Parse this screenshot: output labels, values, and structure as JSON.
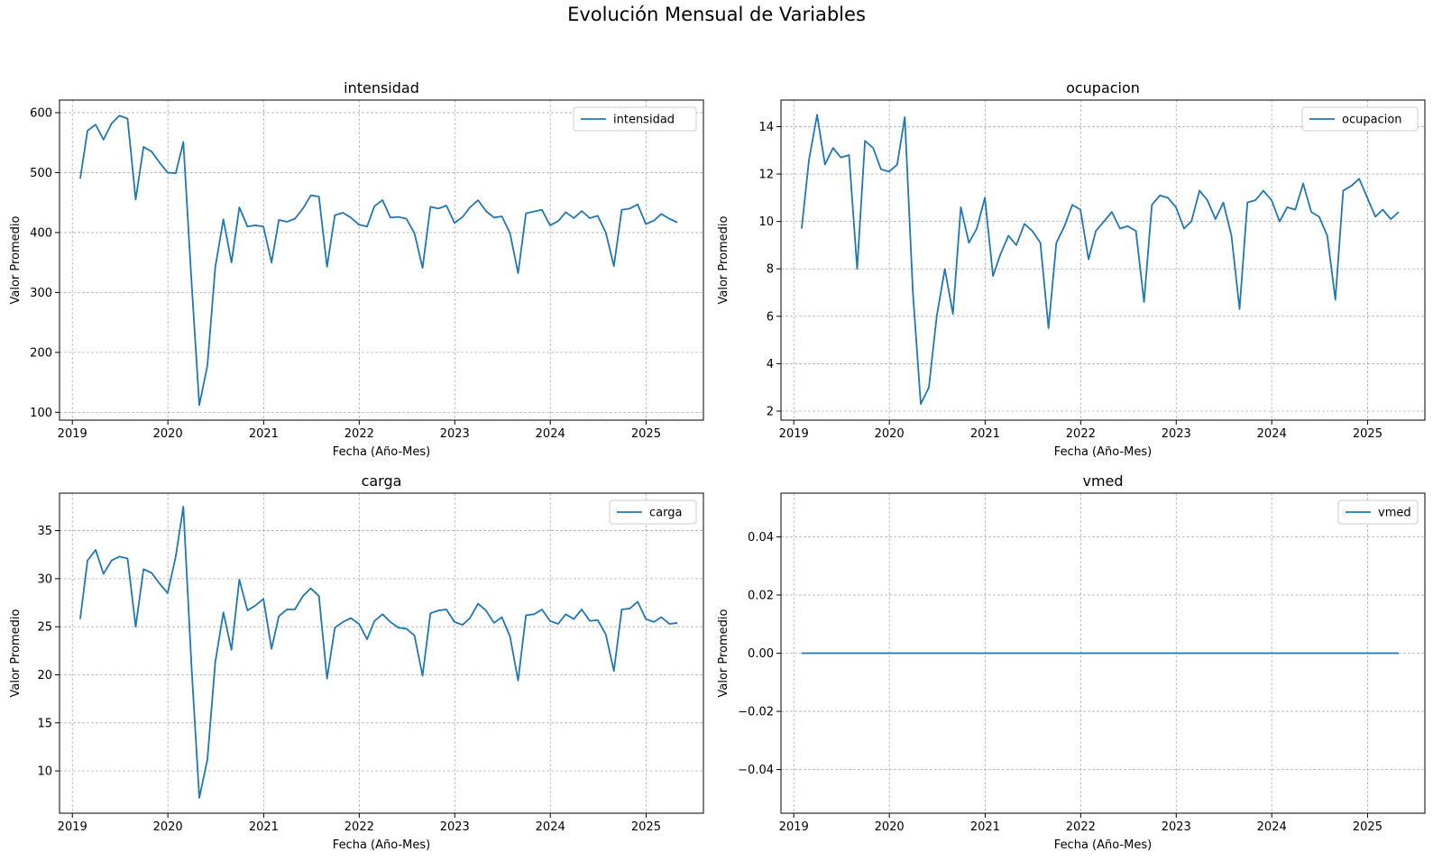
{
  "figure": {
    "suptitle": "Evolución Mensual de Variables"
  },
  "chart_data": [
    {
      "type": "line",
      "title": "intensidad",
      "xlabel": "Fecha (Año-Mes)",
      "ylabel": "Valor Promedio",
      "xticks": [
        "2019",
        "2020",
        "2021",
        "2022",
        "2023",
        "2024",
        "2025"
      ],
      "yticks": [
        "100",
        "200",
        "300",
        "400",
        "500",
        "600"
      ],
      "xlim": [
        "2018-11-13",
        "2025-08-08"
      ],
      "ylim": [
        87,
        621
      ],
      "grid": true,
      "legend": "top-right",
      "x": [
        "2019-01-31",
        "2019-02-28",
        "2019-03-31",
        "2019-04-30",
        "2019-05-31",
        "2019-06-30",
        "2019-07-31",
        "2019-08-31",
        "2019-09-30",
        "2019-10-31",
        "2019-11-30",
        "2019-12-31",
        "2020-01-31",
        "2020-02-29",
        "2020-03-31",
        "2020-04-30",
        "2020-05-31",
        "2020-06-30",
        "2020-07-31",
        "2020-08-31",
        "2020-09-30",
        "2020-10-31",
        "2020-11-30",
        "2020-12-31",
        "2021-01-31",
        "2021-02-28",
        "2021-03-31",
        "2021-04-30",
        "2021-05-31",
        "2021-06-30",
        "2021-07-31",
        "2021-08-31",
        "2021-09-30",
        "2021-10-31",
        "2021-11-30",
        "2021-12-31",
        "2022-01-31",
        "2022-02-28",
        "2022-03-31",
        "2022-04-30",
        "2022-05-31",
        "2022-06-30",
        "2022-07-31",
        "2022-08-31",
        "2022-09-30",
        "2022-10-31",
        "2022-11-30",
        "2022-12-31",
        "2023-01-31",
        "2023-02-28",
        "2023-03-31",
        "2023-04-30",
        "2023-05-31",
        "2023-06-30",
        "2023-07-31",
        "2023-08-31",
        "2023-09-30",
        "2023-10-31",
        "2023-11-30",
        "2023-12-31",
        "2024-01-31",
        "2024-02-29",
        "2024-03-31",
        "2024-04-30",
        "2024-05-31",
        "2024-06-30",
        "2024-07-31",
        "2024-08-31",
        "2024-09-30",
        "2024-10-31",
        "2024-11-30",
        "2024-12-31",
        "2025-01-31",
        "2025-02-28",
        "2025-03-31",
        "2025-04-30"
      ],
      "series": [
        {
          "name": "intensidad",
          "color": "#1f77b4",
          "values": [
            490,
            570,
            580,
            555,
            582,
            595,
            590,
            455,
            543,
            535,
            517,
            500,
            499,
            551,
            320,
            112,
            178,
            342,
            422,
            350,
            442,
            410,
            412,
            410,
            350,
            421,
            418,
            423,
            440,
            462,
            460,
            343,
            429,
            433,
            425,
            413,
            410,
            444,
            454,
            425,
            426,
            423,
            399,
            341,
            443,
            440,
            445,
            416,
            426,
            442,
            454,
            436,
            425,
            427,
            399,
            332,
            432,
            435,
            438,
            412,
            419,
            434,
            424,
            436,
            424,
            428,
            400,
            344,
            438,
            440,
            447,
            414,
            420,
            431,
            423,
            417
          ]
        }
      ]
    },
    {
      "type": "line",
      "title": "ocupacion",
      "xlabel": "Fecha (Año-Mes)",
      "ylabel": "Valor Promedio",
      "xticks": [
        "2019",
        "2020",
        "2021",
        "2022",
        "2023",
        "2024",
        "2025"
      ],
      "yticks": [
        "2",
        "4",
        "6",
        "8",
        "10",
        "12",
        "14"
      ],
      "xlim": [
        "2018-11-13",
        "2025-08-08"
      ],
      "ylim": [
        1.62,
        15.12
      ],
      "grid": true,
      "legend": "top-right",
      "x": [
        "2019-01-31",
        "2019-02-28",
        "2019-03-31",
        "2019-04-30",
        "2019-05-31",
        "2019-06-30",
        "2019-07-31",
        "2019-08-31",
        "2019-09-30",
        "2019-10-31",
        "2019-11-30",
        "2019-12-31",
        "2020-01-31",
        "2020-02-29",
        "2020-03-31",
        "2020-04-30",
        "2020-05-31",
        "2020-06-30",
        "2020-07-31",
        "2020-08-31",
        "2020-09-30",
        "2020-10-31",
        "2020-11-30",
        "2020-12-31",
        "2021-01-31",
        "2021-02-28",
        "2021-03-31",
        "2021-04-30",
        "2021-05-31",
        "2021-06-30",
        "2021-07-31",
        "2021-08-31",
        "2021-09-30",
        "2021-10-31",
        "2021-11-30",
        "2021-12-31",
        "2022-01-31",
        "2022-02-28",
        "2022-03-31",
        "2022-04-30",
        "2022-05-31",
        "2022-06-30",
        "2022-07-31",
        "2022-08-31",
        "2022-09-30",
        "2022-10-31",
        "2022-11-30",
        "2022-12-31",
        "2023-01-31",
        "2023-02-28",
        "2023-03-31",
        "2023-04-30",
        "2023-05-31",
        "2023-06-30",
        "2023-07-31",
        "2023-08-31",
        "2023-09-30",
        "2023-10-31",
        "2023-11-30",
        "2023-12-31",
        "2024-01-31",
        "2024-02-29",
        "2024-03-31",
        "2024-04-30",
        "2024-05-31",
        "2024-06-30",
        "2024-07-31",
        "2024-08-31",
        "2024-09-30",
        "2024-10-31",
        "2024-11-30",
        "2024-12-31",
        "2025-01-31",
        "2025-02-28",
        "2025-03-31",
        "2025-04-30"
      ],
      "series": [
        {
          "name": "ocupacion",
          "color": "#1f77b4",
          "values": [
            9.7,
            12.6,
            14.5,
            12.4,
            13.1,
            12.7,
            12.8,
            8.0,
            13.4,
            13.1,
            12.2,
            12.1,
            12.4,
            14.4,
            7.0,
            2.3,
            3.0,
            6.0,
            8.0,
            6.1,
            10.6,
            9.1,
            9.7,
            11.0,
            7.7,
            8.6,
            9.4,
            9.0,
            9.9,
            9.6,
            9.1,
            5.5,
            9.1,
            9.8,
            10.7,
            10.5,
            8.4,
            9.6,
            10.0,
            10.4,
            9.7,
            9.8,
            9.6,
            6.6,
            10.7,
            11.1,
            11.0,
            10.6,
            9.7,
            10.0,
            11.3,
            10.9,
            10.1,
            10.8,
            9.4,
            6.3,
            10.8,
            10.9,
            11.3,
            10.9,
            10.0,
            10.6,
            10.5,
            11.6,
            10.4,
            10.2,
            9.4,
            6.7,
            11.3,
            11.5,
            11.8,
            11.0,
            10.2,
            10.5,
            10.1,
            10.4
          ]
        }
      ]
    },
    {
      "type": "line",
      "title": "carga",
      "xlabel": "Fecha (Año-Mes)",
      "ylabel": "Valor Promedio",
      "xticks": [
        "2019",
        "2020",
        "2021",
        "2022",
        "2023",
        "2024",
        "2025"
      ],
      "yticks": [
        "10",
        "15",
        "20",
        "25",
        "30",
        "35"
      ],
      "xlim": [
        "2018-11-13",
        "2025-08-08"
      ],
      "ylim": [
        5.6,
        38.9
      ],
      "grid": true,
      "legend": "top-right",
      "x": [
        "2019-01-31",
        "2019-02-28",
        "2019-03-31",
        "2019-04-30",
        "2019-05-31",
        "2019-06-30",
        "2019-07-31",
        "2019-08-31",
        "2019-09-30",
        "2019-10-31",
        "2019-11-30",
        "2019-12-31",
        "2020-01-31",
        "2020-02-29",
        "2020-03-31",
        "2020-04-30",
        "2020-05-31",
        "2020-06-30",
        "2020-07-31",
        "2020-08-31",
        "2020-09-30",
        "2020-10-31",
        "2020-11-30",
        "2020-12-31",
        "2021-01-31",
        "2021-02-28",
        "2021-03-31",
        "2021-04-30",
        "2021-05-31",
        "2021-06-30",
        "2021-07-31",
        "2021-08-31",
        "2021-09-30",
        "2021-10-31",
        "2021-11-30",
        "2021-12-31",
        "2022-01-31",
        "2022-02-28",
        "2022-03-31",
        "2022-04-30",
        "2022-05-31",
        "2022-06-30",
        "2022-07-31",
        "2022-08-31",
        "2022-09-30",
        "2022-10-31",
        "2022-11-30",
        "2022-12-31",
        "2023-01-31",
        "2023-02-28",
        "2023-03-31",
        "2023-04-30",
        "2023-05-31",
        "2023-06-30",
        "2023-07-31",
        "2023-08-31",
        "2023-09-30",
        "2023-10-31",
        "2023-11-30",
        "2023-12-31",
        "2024-01-31",
        "2024-02-29",
        "2024-03-31",
        "2024-04-30",
        "2024-05-31",
        "2024-06-30",
        "2024-07-31",
        "2024-08-31",
        "2024-09-30",
        "2024-10-31",
        "2024-11-30",
        "2024-12-31",
        "2025-01-31",
        "2025-02-28",
        "2025-03-31",
        "2025-04-30"
      ],
      "series": [
        {
          "name": "carga",
          "color": "#1f77b4",
          "values": [
            25.8,
            31.9,
            33.0,
            30.5,
            31.9,
            32.3,
            32.1,
            25.0,
            31.0,
            30.6,
            29.5,
            28.5,
            32.3,
            37.5,
            21.0,
            7.2,
            11.2,
            21.3,
            26.5,
            22.6,
            29.9,
            26.7,
            27.2,
            27.9,
            22.7,
            26.1,
            26.8,
            26.8,
            28.2,
            29.0,
            28.2,
            19.6,
            24.9,
            25.5,
            25.9,
            25.3,
            23.7,
            25.6,
            26.3,
            25.5,
            24.9,
            24.8,
            24.1,
            19.9,
            26.4,
            26.7,
            26.8,
            25.5,
            25.2,
            25.9,
            27.4,
            26.7,
            25.4,
            26.0,
            24.0,
            19.4,
            26.2,
            26.3,
            26.8,
            25.6,
            25.3,
            26.3,
            25.8,
            26.8,
            25.6,
            25.7,
            24.2,
            20.4,
            26.8,
            26.9,
            27.6,
            25.8,
            25.5,
            26.0,
            25.3,
            25.4
          ]
        }
      ]
    },
    {
      "type": "line",
      "title": "vmed",
      "xlabel": "Fecha (Año-Mes)",
      "ylabel": "Valor Promedio",
      "xticks": [
        "2019",
        "2020",
        "2021",
        "2022",
        "2023",
        "2024",
        "2025"
      ],
      "yticks": [
        "−0.04",
        "−0.02",
        "0.00",
        "0.02",
        "0.04"
      ],
      "xlim": [
        "2018-11-13",
        "2025-08-08"
      ],
      "ylim": [
        -0.055,
        0.055
      ],
      "grid": true,
      "legend": "top-right",
      "x": [
        "2019-01-31",
        "2019-02-28",
        "2019-03-31",
        "2019-04-30",
        "2019-05-31",
        "2019-06-30",
        "2019-07-31",
        "2019-08-31",
        "2019-09-30",
        "2019-10-31",
        "2019-11-30",
        "2019-12-31",
        "2020-01-31",
        "2020-02-29",
        "2020-03-31",
        "2020-04-30",
        "2020-05-31",
        "2020-06-30",
        "2020-07-31",
        "2020-08-31",
        "2020-09-30",
        "2020-10-31",
        "2020-11-30",
        "2020-12-31",
        "2021-01-31",
        "2021-02-28",
        "2021-03-31",
        "2021-04-30",
        "2021-05-31",
        "2021-06-30",
        "2021-07-31",
        "2021-08-31",
        "2021-09-30",
        "2021-10-31",
        "2021-11-30",
        "2021-12-31",
        "2022-01-31",
        "2022-02-28",
        "2022-03-31",
        "2022-04-30",
        "2022-05-31",
        "2022-06-30",
        "2022-07-31",
        "2022-08-31",
        "2022-09-30",
        "2022-10-31",
        "2022-11-30",
        "2022-12-31",
        "2023-01-31",
        "2023-02-28",
        "2023-03-31",
        "2023-04-30",
        "2023-05-31",
        "2023-06-30",
        "2023-07-31",
        "2023-08-31",
        "2023-09-30",
        "2023-10-31",
        "2023-11-30",
        "2023-12-31",
        "2024-01-31",
        "2024-02-29",
        "2024-03-31",
        "2024-04-30",
        "2024-05-31",
        "2024-06-30",
        "2024-07-31",
        "2024-08-31",
        "2024-09-30",
        "2024-10-31",
        "2024-11-30",
        "2024-12-31",
        "2025-01-31",
        "2025-02-28",
        "2025-03-31",
        "2025-04-30"
      ],
      "series": [
        {
          "name": "vmed",
          "color": "#1f77b4",
          "values": [
            0,
            0,
            0,
            0,
            0,
            0,
            0,
            0,
            0,
            0,
            0,
            0,
            0,
            0,
            0,
            0,
            0,
            0,
            0,
            0,
            0,
            0,
            0,
            0,
            0,
            0,
            0,
            0,
            0,
            0,
            0,
            0,
            0,
            0,
            0,
            0,
            0,
            0,
            0,
            0,
            0,
            0,
            0,
            0,
            0,
            0,
            0,
            0,
            0,
            0,
            0,
            0,
            0,
            0,
            0,
            0,
            0,
            0,
            0,
            0,
            0,
            0,
            0,
            0,
            0,
            0,
            0,
            0,
            0,
            0,
            0,
            0,
            0,
            0,
            0,
            0
          ]
        }
      ]
    }
  ]
}
